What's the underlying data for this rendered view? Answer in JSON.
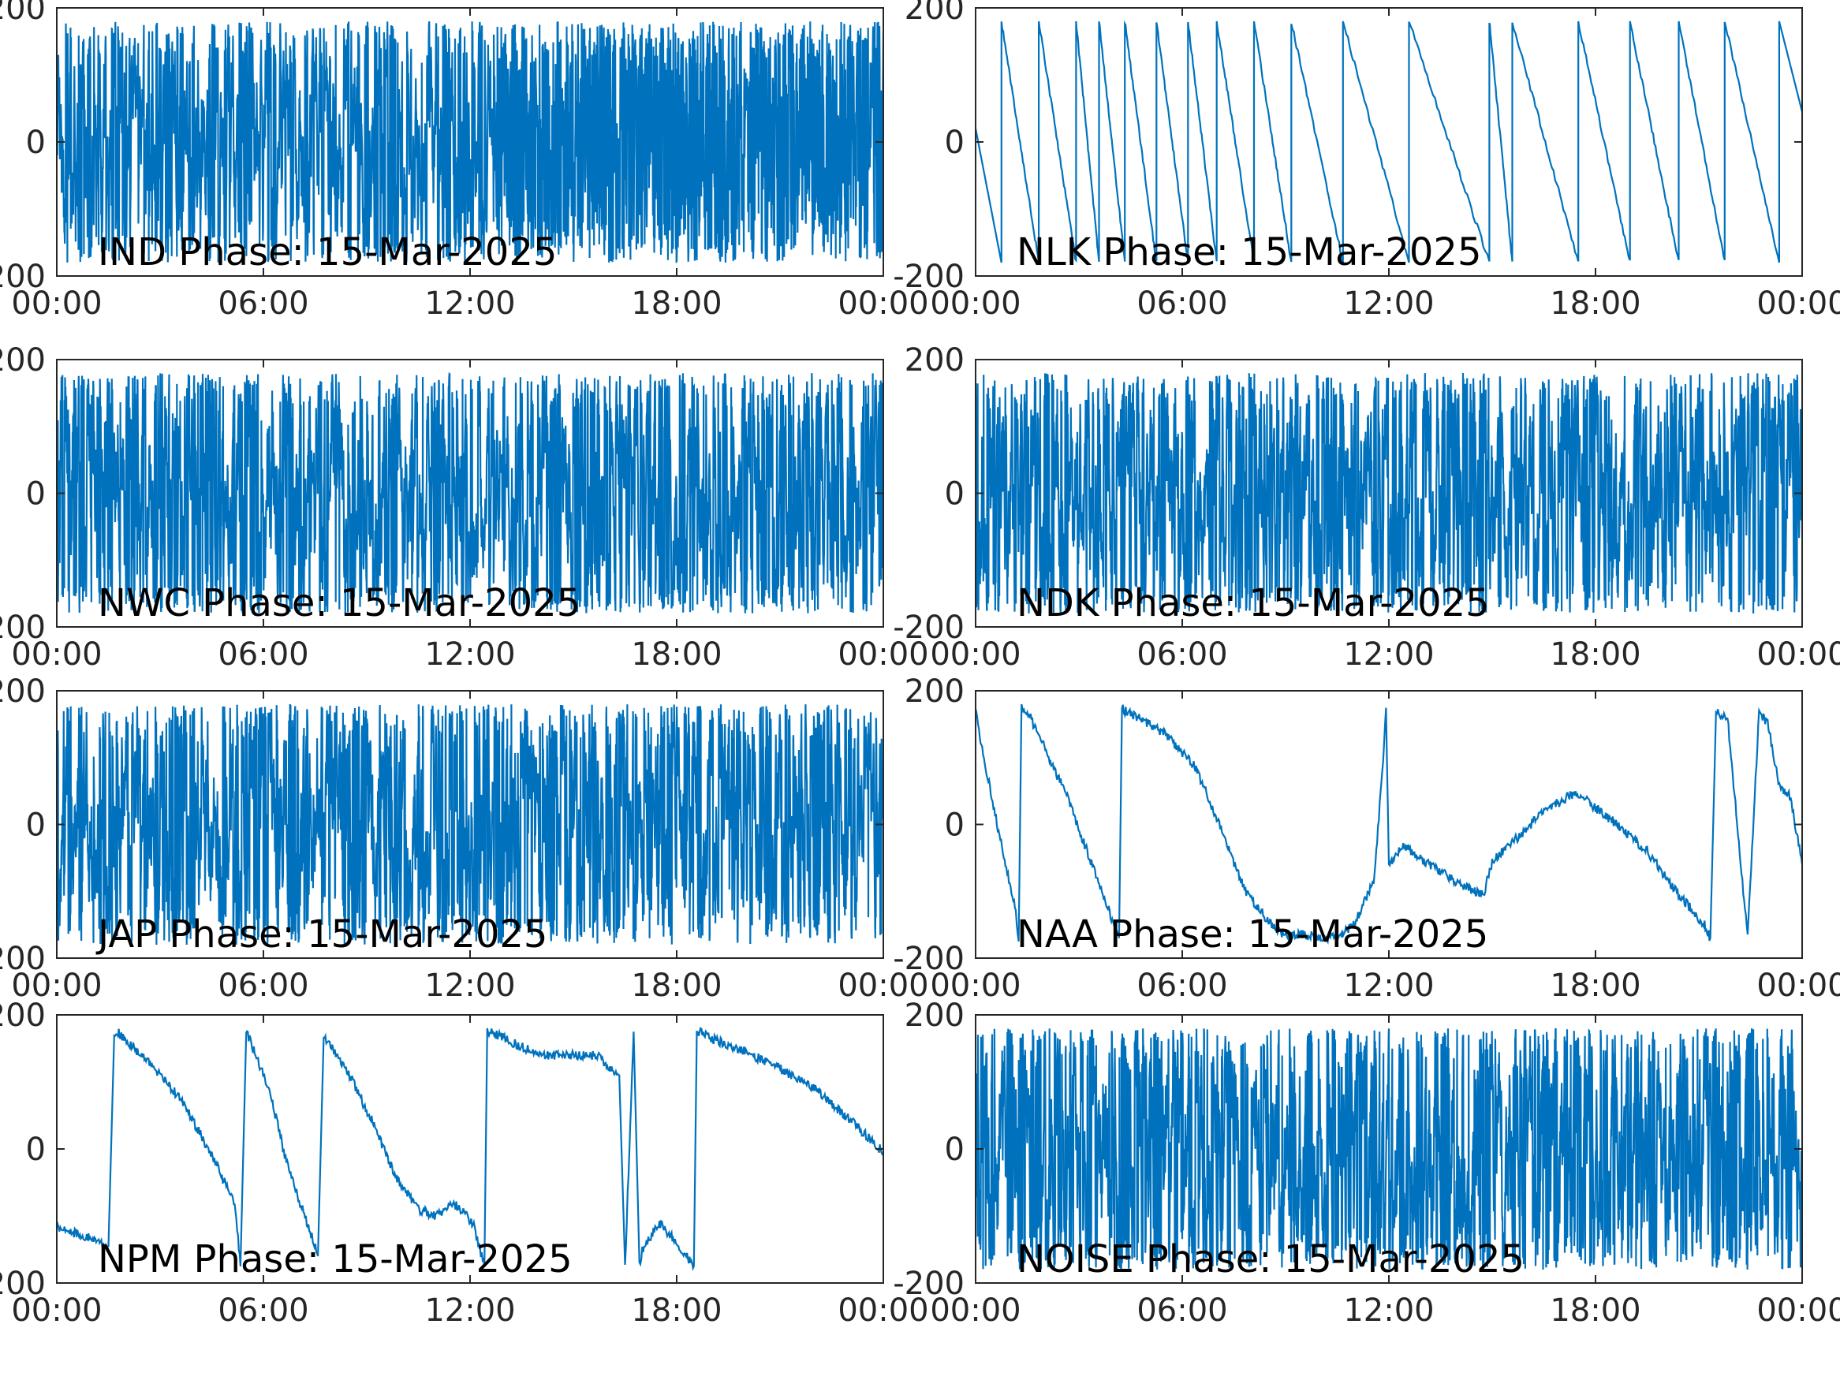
{
  "figure": {
    "background": "#ffffff",
    "line_color": "#0072BD",
    "axis_color": "#262626"
  },
  "chart_data": [
    {
      "type": "line",
      "title": "IND Phase: 15-Mar-2025",
      "xlabel": "",
      "ylabel": "",
      "xlim": [
        "00:00",
        "00:00"
      ],
      "ylim": [
        -200,
        200
      ],
      "xticks": [
        "00:00",
        "06:00",
        "12:00",
        "18:00",
        "00:00"
      ],
      "yticks": [
        -200,
        0,
        200
      ],
      "yticklabels": [
        "-200",
        "0",
        "200"
      ],
      "grid": false,
      "series": [
        {
          "pattern": "wrapping-noise",
          "density": "high after 12:45",
          "values_range": [
            -180,
            180
          ]
        }
      ]
    },
    {
      "type": "line",
      "title": "NLK Phase: 15-Mar-2025",
      "xlabel": "",
      "ylabel": "",
      "xlim": [
        "00:00",
        "00:00"
      ],
      "ylim": [
        -200,
        200
      ],
      "xticks": [
        "00:00",
        "06:00",
        "12:00",
        "18:00",
        "00:00"
      ],
      "yticks": [
        -200,
        0,
        200
      ],
      "yticklabels": [
        "-200",
        "0",
        "200"
      ],
      "grid": false,
      "series": [
        {
          "pattern": "sawtooth",
          "values_range": [
            -180,
            180
          ],
          "wraps_at": [
            "00:45",
            "01:50",
            "02:55",
            "03:35",
            "04:20",
            "05:15",
            "06:10",
            "07:00",
            "08:05",
            "09:10",
            "10:40",
            "12:35",
            "14:55",
            "15:35",
            "17:30",
            "19:00",
            "20:25",
            "21:45",
            "23:20"
          ]
        }
      ]
    },
    {
      "type": "line",
      "title": "NWC Phase: 15-Mar-2025",
      "xlabel": "",
      "ylabel": "",
      "xlim": [
        "00:00",
        "00:00"
      ],
      "ylim": [
        -200,
        200
      ],
      "xticks": [
        "00:00",
        "06:00",
        "12:00",
        "18:00",
        "00:00"
      ],
      "yticks": [
        -200,
        0,
        200
      ],
      "yticklabels": [
        "-200",
        "0",
        "200"
      ],
      "grid": false,
      "series": [
        {
          "pattern": "wrapping-noise",
          "values_range": [
            -180,
            180
          ]
        }
      ]
    },
    {
      "type": "line",
      "title": "NDK Phase: 15-Mar-2025",
      "xlabel": "",
      "ylabel": "",
      "xlim": [
        "00:00",
        "00:00"
      ],
      "ylim": [
        -200,
        200
      ],
      "xticks": [
        "00:00",
        "06:00",
        "12:00",
        "18:00",
        "00:00"
      ],
      "yticks": [
        -200,
        0,
        200
      ],
      "yticklabels": [
        "-200",
        "0",
        "200"
      ],
      "grid": false,
      "series": [
        {
          "pattern": "wrapping-noise",
          "values_range": [
            -180,
            180
          ]
        }
      ]
    },
    {
      "type": "line",
      "title": "JAP Phase: 15-Mar-2025",
      "xlabel": "",
      "ylabel": "",
      "xlim": [
        "00:00",
        "00:00"
      ],
      "ylim": [
        -200,
        200
      ],
      "xticks": [
        "00:00",
        "06:00",
        "12:00",
        "18:00",
        "00:00"
      ],
      "yticks": [
        -200,
        0,
        200
      ],
      "yticklabels": [
        "-200",
        "0",
        "200"
      ],
      "grid": false,
      "series": [
        {
          "pattern": "wrapping-noise",
          "values_range": [
            -180,
            180
          ]
        }
      ]
    },
    {
      "type": "line",
      "title": "NAA Phase: 15-Mar-2025",
      "xlabel": "",
      "ylabel": "",
      "xlim": [
        "00:00",
        "00:00"
      ],
      "ylim": [
        -200,
        200
      ],
      "xticks": [
        "00:00",
        "06:00",
        "12:00",
        "18:00",
        "00:00"
      ],
      "yticks": [
        -200,
        0,
        200
      ],
      "yticklabels": [
        "-200",
        "0",
        "200"
      ],
      "grid": false,
      "series": [
        {
          "pattern": "smooth-drift",
          "x": [
            "00:00",
            "00:10",
            "00:40",
            "01:10",
            "01:15",
            "01:20",
            "01:30",
            "02:40",
            "03:40",
            "04:10",
            "04:15",
            "04:20",
            "04:45",
            "05:30",
            "06:20",
            "07:00",
            "07:50",
            "08:30",
            "08:55",
            "09:30",
            "10:30",
            "11:00",
            "11:35",
            "11:50",
            "11:55",
            "12:00",
            "12:25",
            "13:10",
            "14:25",
            "14:45",
            "15:00",
            "15:50",
            "16:30",
            "17:10",
            "17:30",
            "17:45",
            "18:30",
            "19:30",
            "20:20",
            "21:10",
            "21:20",
            "21:30",
            "21:50",
            "22:25",
            "22:45",
            "23:00",
            "23:20",
            "23:40",
            "24:00"
          ],
          "y": [
            175,
            120,
            -10,
            -130,
            -175,
            175,
            170,
            40,
            -100,
            -170,
            175,
            170,
            160,
            135,
            90,
            10,
            -100,
            -145,
            -165,
            -165,
            -170,
            -150,
            -80,
            100,
            170,
            -60,
            -30,
            -60,
            -100,
            -105,
            -55,
            -15,
            20,
            40,
            45,
            35,
            5,
            -40,
            -100,
            -150,
            -170,
            170,
            160,
            -170,
            170,
            150,
            60,
            40,
            -60
          ]
        }
      ]
    },
    {
      "type": "line",
      "title": "NPM Phase: 15-Mar-2025",
      "xlabel": "",
      "ylabel": "",
      "xlim": [
        "00:00",
        "00:00"
      ],
      "ylim": [
        -200,
        200
      ],
      "xticks": [
        "00:00",
        "06:00",
        "12:00",
        "18:00",
        "00:00"
      ],
      "yticks": [
        -200,
        0,
        200
      ],
      "yticklabels": [
        "-200",
        "0",
        "200"
      ],
      "grid": false,
      "series": [
        {
          "pattern": "sawtooth",
          "x": [
            "00:00",
            "00:30",
            "01:10",
            "01:30",
            "01:40",
            "01:45",
            "02:40",
            "03:40",
            "04:30",
            "05:10",
            "05:20",
            "05:30",
            "06:10",
            "06:40",
            "07:20",
            "07:35",
            "07:45",
            "08:30",
            "09:10",
            "09:50",
            "10:30",
            "11:00",
            "11:30",
            "12:05",
            "12:25",
            "12:30",
            "13:00",
            "14:00",
            "15:00",
            "15:40",
            "16:20",
            "16:30",
            "16:45",
            "16:55",
            "17:00",
            "17:30",
            "18:00",
            "18:30",
            "18:35",
            "18:40",
            "19:00",
            "20:00",
            "21:00",
            "22:00",
            "23:00",
            "24:00"
          ],
          "y": [
            -115,
            -125,
            -135,
            -145,
            175,
            175,
            130,
            70,
            -10,
            -80,
            -175,
            175,
            90,
            -20,
            -120,
            -160,
            170,
            110,
            40,
            -40,
            -90,
            -100,
            -80,
            -110,
            -175,
            175,
            165,
            140,
            140,
            140,
            110,
            -175,
            175,
            -175,
            -150,
            -110,
            -140,
            -175,
            175,
            175,
            165,
            145,
            120,
            90,
            45,
            -5
          ]
        }
      ]
    },
    {
      "type": "line",
      "title": "NOISE Phase: 15-Mar-2025",
      "xlabel": "",
      "ylabel": "",
      "xlim": [
        "00:00",
        "00:00"
      ],
      "ylim": [
        -200,
        200
      ],
      "xticks": [
        "00:00",
        "06:00",
        "12:00",
        "18:00",
        "00:00"
      ],
      "yticks": [
        -200,
        0,
        200
      ],
      "yticklabels": [
        "-200",
        "0",
        "200"
      ],
      "grid": false,
      "series": [
        {
          "pattern": "wrapping-noise",
          "values_range": [
            -180,
            180
          ]
        }
      ]
    }
  ]
}
